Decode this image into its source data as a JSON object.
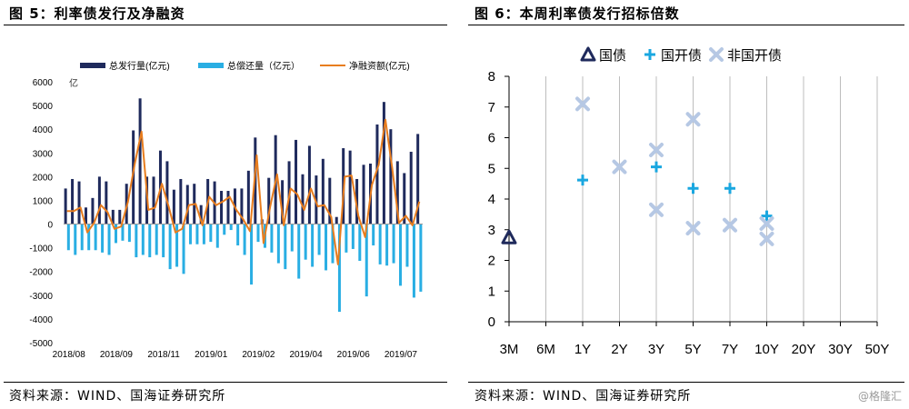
{
  "left": {
    "title": "图 5：利率债发行及净融资",
    "source": "资料来源：WIND、国海证券研究所"
  },
  "right": {
    "title": "图 6：本周利率债发行招标倍数",
    "source": "资料来源：WIND、国海证券研究所"
  },
  "watermark": "@格隆汇",
  "colors": {
    "issue": "#1f2a5c",
    "repay": "#29aee3",
    "net": "#e87d1e",
    "guozhai": "#1f2a5c",
    "guokai": "#1aa7e0",
    "feiguokai": "#b6c8e4"
  },
  "chart_data": [
    {
      "type": "bar",
      "ylabel": "亿",
      "ylim": [
        -5000,
        6000
      ],
      "yticks": [
        6000,
        5000,
        4000,
        3000,
        2000,
        1000,
        0,
        -1000,
        -2000,
        -3000,
        -4000,
        -5000
      ],
      "xtick_labels": [
        "2018/08",
        "2018/09",
        "2018/11",
        "2019/01",
        "2019/02",
        "2019/04",
        "2019/06",
        "2019/07"
      ],
      "series": [
        {
          "name": "总发行量(亿元)",
          "kind": "bar",
          "values": [
            1500,
            1900,
            1800,
            700,
            1100,
            2000,
            1800,
            600,
            600,
            1700,
            3950,
            5300,
            2000,
            2000,
            3100,
            2650,
            1450,
            1900,
            1650,
            1700,
            800,
            1900,
            1800,
            1400,
            1400,
            1500,
            1500,
            2250,
            3650,
            200,
            1950,
            3750,
            1850,
            2650,
            3550,
            2100,
            3300,
            2050,
            2750,
            1950,
            300,
            3200,
            3100,
            1900,
            2500,
            2550,
            4200,
            5150,
            4000,
            2650,
            2150,
            3050,
            3800
          ]
        },
        {
          "name": "总偿还量（亿元）",
          "kind": "bar",
          "values": [
            -1100,
            -1300,
            -1100,
            -1100,
            -1100,
            -1200,
            -1300,
            -800,
            -700,
            -750,
            -1400,
            -1300,
            -1400,
            -1300,
            -1400,
            -1900,
            -1800,
            -2100,
            -850,
            -850,
            -850,
            -750,
            -1000,
            -450,
            -250,
            -900,
            -1300,
            -2550,
            -750,
            -1000,
            -1200,
            -1650,
            -1900,
            -1150,
            -2300,
            -1500,
            -1800,
            -1300,
            -1950,
            -1650,
            -3700,
            -1200,
            -1050,
            -1550,
            -3050,
            -900,
            -1700,
            -1750,
            -1650,
            -2600,
            -1800,
            -3100,
            -2850
          ]
        },
        {
          "name": "净融资额(亿元)",
          "kind": "line",
          "values": [
            550,
            550,
            700,
            -350,
            50,
            800,
            500,
            -200,
            -100,
            950,
            2550,
            3900,
            600,
            700,
            1700,
            750,
            -350,
            -200,
            800,
            850,
            -50,
            1150,
            800,
            950,
            1150,
            600,
            200,
            -300,
            2900,
            -800,
            750,
            2100,
            -50,
            1500,
            1250,
            600,
            1500,
            750,
            800,
            300,
            -1700,
            2000,
            2050,
            350,
            -550,
            1650,
            2500,
            4400,
            2350,
            50,
            350,
            -50,
            950
          ]
        }
      ]
    },
    {
      "type": "scatter",
      "categories": [
        "3M",
        "6M",
        "1Y",
        "2Y",
        "3Y",
        "5Y",
        "7Y",
        "10Y",
        "20Y",
        "30Y",
        "50Y"
      ],
      "ylim": [
        0,
        8
      ],
      "yticks": [
        0,
        1,
        2,
        3,
        4,
        5,
        6,
        7,
        8
      ],
      "series": [
        {
          "name": "国债",
          "marker": "triangle",
          "points": [
            [
              "3M",
              2.75
            ]
          ]
        },
        {
          "name": "国开债",
          "marker": "plus",
          "points": [
            [
              "1Y",
              4.62
            ],
            [
              "3Y",
              5.05
            ],
            [
              "5Y",
              4.35
            ],
            [
              "7Y",
              4.35
            ],
            [
              "10Y",
              3.45
            ]
          ]
        },
        {
          "name": "非国开债",
          "marker": "x",
          "points": [
            [
              "1Y",
              7.1
            ],
            [
              "2Y",
              5.05
            ],
            [
              "3Y",
              5.6
            ],
            [
              "3Y",
              3.65
            ],
            [
              "5Y",
              6.6
            ],
            [
              "5Y",
              3.05
            ],
            [
              "7Y",
              3.15
            ],
            [
              "10Y",
              3.2
            ],
            [
              "10Y",
              2.7
            ]
          ]
        }
      ]
    }
  ]
}
